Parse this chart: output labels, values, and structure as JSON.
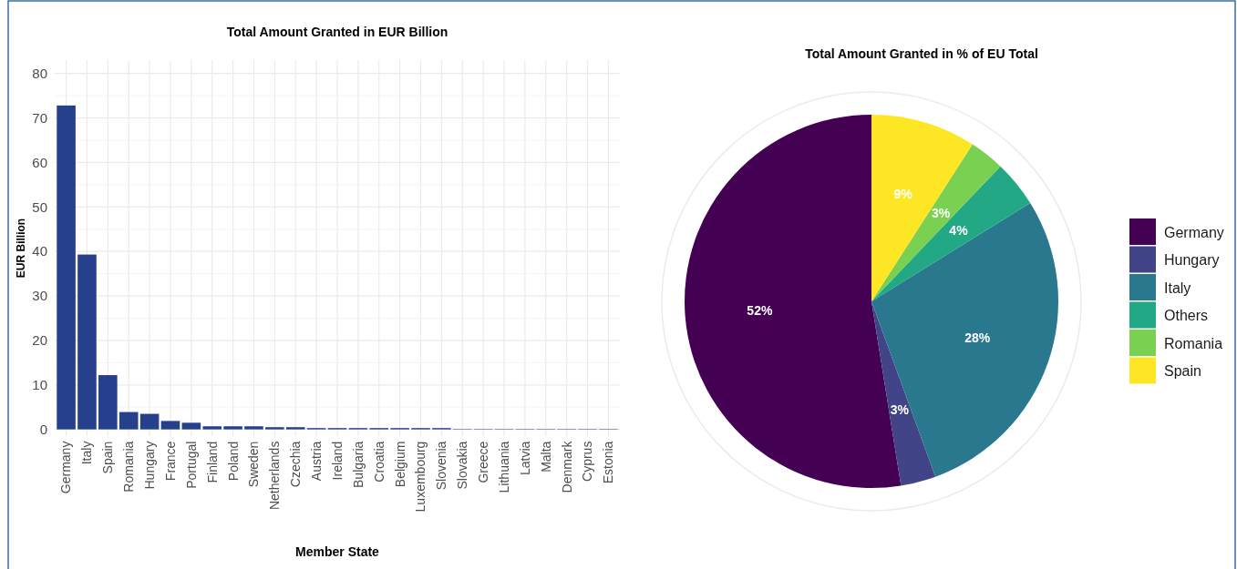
{
  "chart_data": [
    {
      "type": "bar",
      "title": "Total Amount Granted in EUR Billion",
      "xlabel": "Member State",
      "ylabel": "EUR Billion",
      "categories": [
        "Germany",
        "Italy",
        "Spain",
        "Romania",
        "Hungary",
        "France",
        "Portugal",
        "Finland",
        "Poland",
        "Sweden",
        "Netherlands",
        "Czechia",
        "Austria",
        "Ireland",
        "Bulgaria",
        "Croatia",
        "Belgium",
        "Luxembourg",
        "Slovenia",
        "Slovakia",
        "Greece",
        "Lithuania",
        "Latvia",
        "Malta",
        "Denmark",
        "Cyprus",
        "Estonia"
      ],
      "values": [
        72.8,
        39.3,
        12.2,
        3.9,
        3.5,
        1.9,
        1.5,
        0.7,
        0.7,
        0.7,
        0.5,
        0.5,
        0.3,
        0.3,
        0.3,
        0.3,
        0.3,
        0.3,
        0.3,
        0.1,
        0.1,
        0.1,
        0.1,
        0.1,
        0.1,
        0.1,
        0.1
      ],
      "color": "#27408b",
      "ylim": [
        -1.5,
        83
      ],
      "yticks": [
        0,
        10,
        20,
        30,
        40,
        50,
        60,
        70,
        80
      ],
      "grid": true
    },
    {
      "type": "pie",
      "title": "Total Amount Granted in % of EU Total",
      "categories": [
        "Germany",
        "Hungary",
        "Italy",
        "Others",
        "Romania",
        "Spain"
      ],
      "values": [
        52,
        3,
        28,
        4,
        3,
        9
      ],
      "colors": [
        "#440154",
        "#414487",
        "#2a788e",
        "#22a884",
        "#7ad151",
        "#fde725"
      ],
      "value_labels": [
        "52%",
        "3%",
        "28%",
        "4%",
        "3%",
        "9%"
      ],
      "legend": "right"
    }
  ]
}
